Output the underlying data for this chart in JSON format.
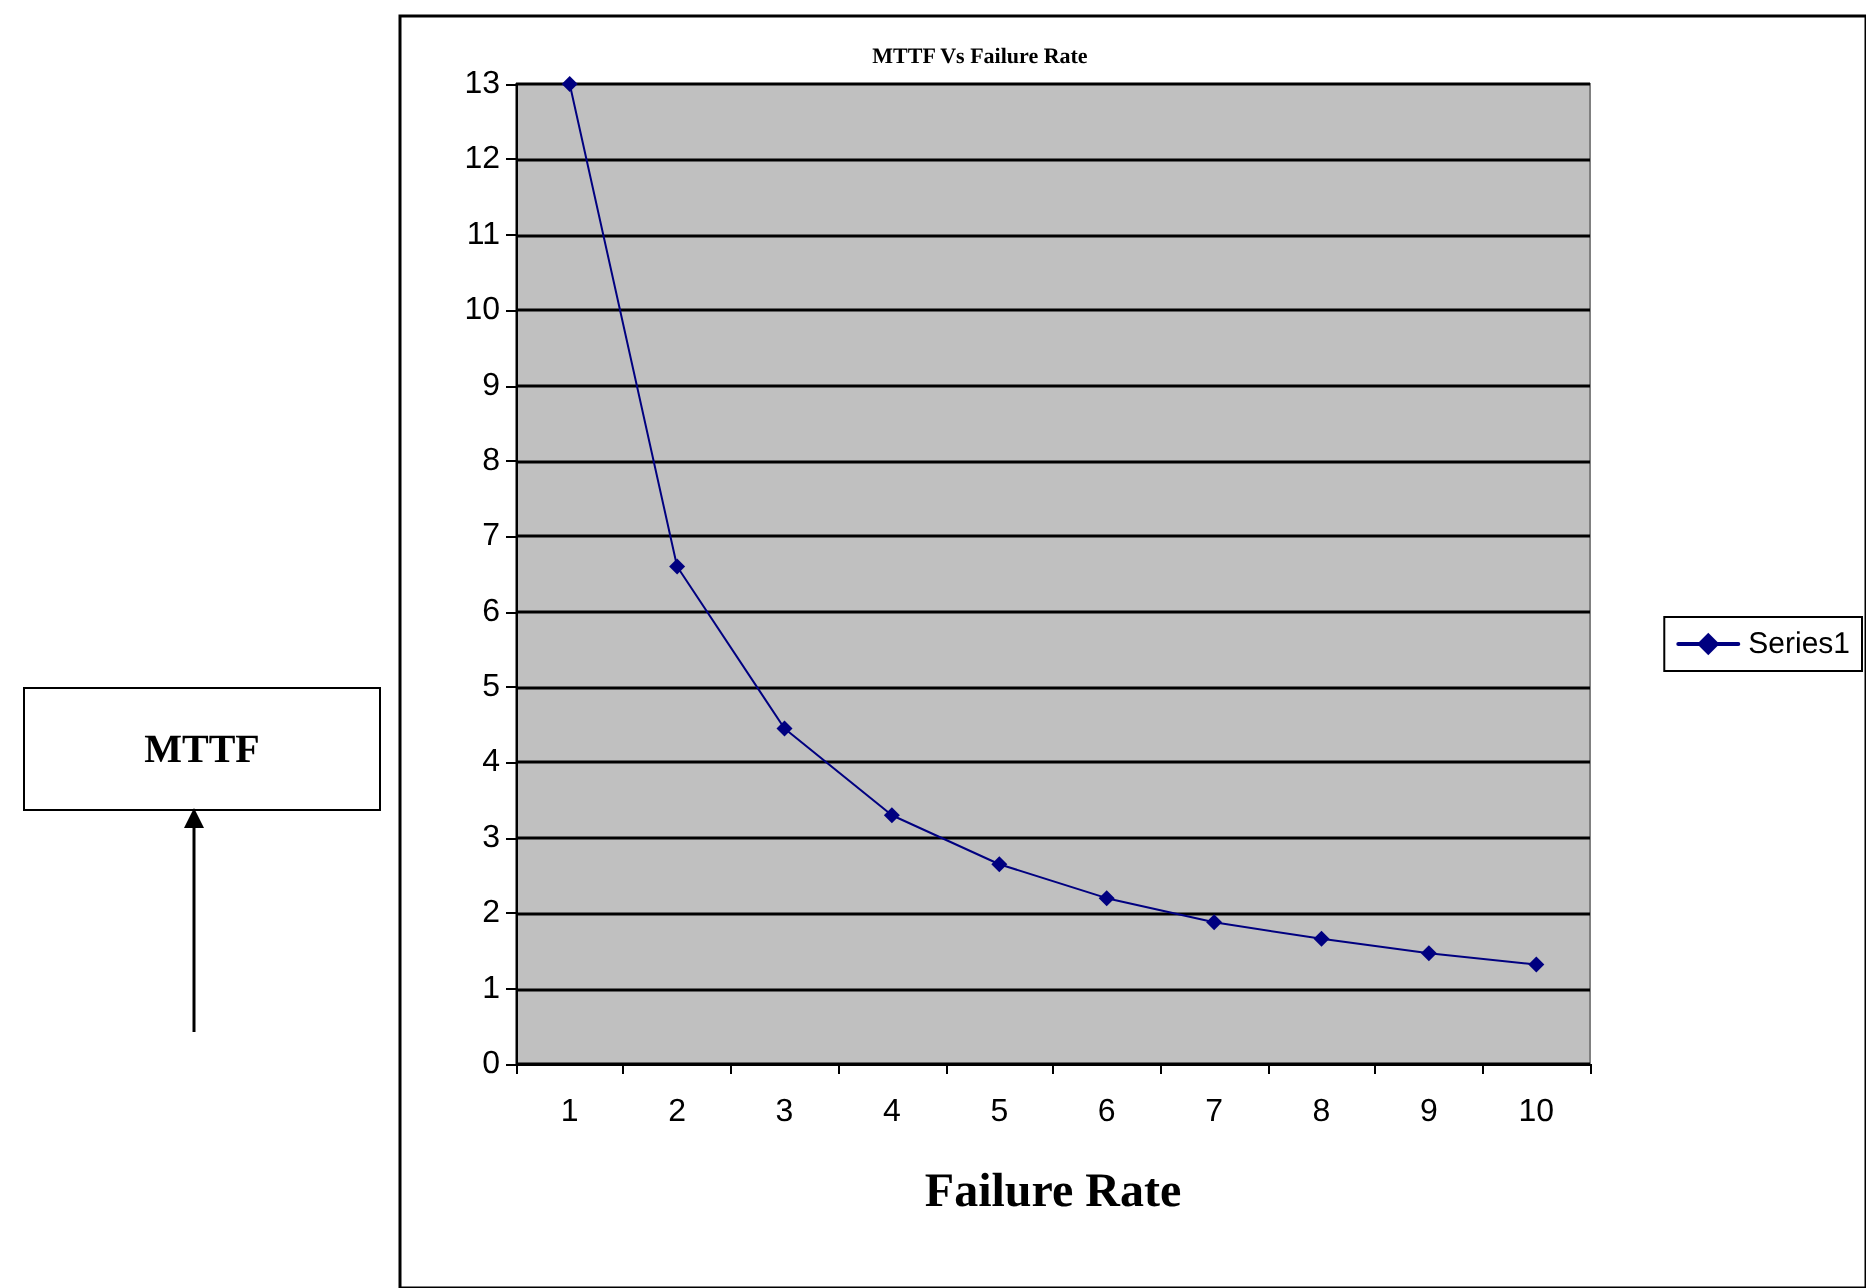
{
  "chart_data": {
    "type": "line",
    "title": "MTTF Vs Failure Rate",
    "xlabel": "Failure Rate",
    "annotations": [
      "MTTF"
    ],
    "categories": [
      "1",
      "2",
      "3",
      "4",
      "5",
      "6",
      "7",
      "8",
      "9",
      "10"
    ],
    "series": [
      {
        "name": "Series1",
        "color": "#000080",
        "values": [
          13,
          6.6,
          4.45,
          3.3,
          2.65,
          2.2,
          1.88,
          1.66,
          1.47,
          1.32
        ]
      }
    ],
    "ylim": [
      0,
      13
    ],
    "yticks": [
      0,
      1,
      2,
      3,
      4,
      5,
      6,
      7,
      8,
      9,
      10,
      11,
      12,
      13
    ],
    "grid": "y",
    "legend": "right",
    "marker": "diamond",
    "line_style": "solid"
  }
}
